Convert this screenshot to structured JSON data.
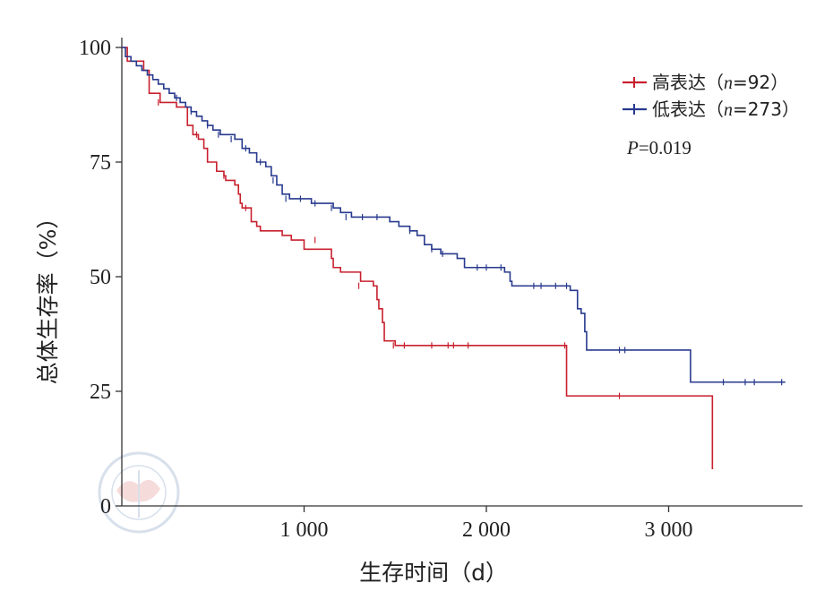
{
  "chart_data": {
    "type": "line",
    "step": true,
    "xlabel": "生存时间（d）",
    "ylabel": "总体生存率（%）",
    "xlim": [
      0,
      3700
    ],
    "ylim": [
      0,
      100
    ],
    "xticks": [
      1000,
      2000,
      3000
    ],
    "xtick_labels": [
      "1 000",
      "2 000",
      "3 000"
    ],
    "yticks": [
      0,
      25,
      50,
      75,
      100
    ],
    "ytick_labels": [
      "0",
      "25",
      "50",
      "75",
      "100"
    ],
    "legend_position": "top-right",
    "annotation": {
      "p_label": "P",
      "p_value": "=0.019"
    },
    "series": [
      {
        "key": "high",
        "name": "高表达（n=92）",
        "legend_main": "高表达（",
        "legend_n": "n",
        "legend_rest": "=92）",
        "color": "#c8202e",
        "steps": [
          [
            0,
            100
          ],
          [
            30,
            97
          ],
          [
            120,
            95
          ],
          [
            150,
            90
          ],
          [
            210,
            88
          ],
          [
            300,
            88
          ],
          [
            300,
            87
          ],
          [
            340,
            87
          ],
          [
            360,
            83
          ],
          [
            390,
            81
          ],
          [
            420,
            80
          ],
          [
            450,
            78
          ],
          [
            470,
            75
          ],
          [
            520,
            73
          ],
          [
            560,
            72
          ],
          [
            570,
            71
          ],
          [
            600,
            71
          ],
          [
            620,
            70
          ],
          [
            640,
            68
          ],
          [
            650,
            66
          ],
          [
            660,
            65
          ],
          [
            710,
            62
          ],
          [
            740,
            61
          ],
          [
            760,
            60
          ],
          [
            880,
            59
          ],
          [
            930,
            58
          ],
          [
            1000,
            58
          ],
          [
            1000,
            56
          ],
          [
            1120,
            56
          ],
          [
            1150,
            54
          ],
          [
            1160,
            52
          ],
          [
            1200,
            51
          ],
          [
            1280,
            51
          ],
          [
            1310,
            49
          ],
          [
            1380,
            48
          ],
          [
            1400,
            45
          ],
          [
            1410,
            43
          ],
          [
            1430,
            40
          ],
          [
            1440,
            36
          ],
          [
            1500,
            35
          ],
          [
            2440,
            35
          ],
          [
            2440,
            24
          ],
          [
            3240,
            24
          ],
          [
            3240,
            8
          ]
        ],
        "censored": [
          [
            200,
            88
          ],
          [
            410,
            81
          ],
          [
            560,
            72
          ],
          [
            680,
            65
          ],
          [
            1060,
            58
          ],
          [
            1300,
            48
          ],
          [
            1490,
            35
          ],
          [
            1550,
            35
          ],
          [
            1700,
            35
          ],
          [
            1790,
            35
          ],
          [
            1820,
            35
          ],
          [
            1900,
            35
          ],
          [
            2430,
            35
          ],
          [
            2730,
            24
          ]
        ]
      },
      {
        "key": "low",
        "name": "低表达（n=273）",
        "legend_main": "低表达（",
        "legend_n": "n",
        "legend_rest": "=273）",
        "color": "#283a8e",
        "steps": [
          [
            0,
            100
          ],
          [
            20,
            98
          ],
          [
            50,
            97
          ],
          [
            80,
            96
          ],
          [
            110,
            95
          ],
          [
            140,
            94
          ],
          [
            170,
            93
          ],
          [
            200,
            92
          ],
          [
            230,
            91
          ],
          [
            260,
            90
          ],
          [
            290,
            89
          ],
          [
            320,
            88
          ],
          [
            350,
            87
          ],
          [
            380,
            86
          ],
          [
            410,
            85
          ],
          [
            440,
            84
          ],
          [
            470,
            83
          ],
          [
            500,
            82
          ],
          [
            540,
            81
          ],
          [
            580,
            81
          ],
          [
            620,
            80
          ],
          [
            660,
            78
          ],
          [
            700,
            77
          ],
          [
            740,
            75
          ],
          [
            790,
            74
          ],
          [
            820,
            72
          ],
          [
            850,
            70
          ],
          [
            880,
            68
          ],
          [
            920,
            67
          ],
          [
            1000,
            67
          ],
          [
            1040,
            66
          ],
          [
            1120,
            66
          ],
          [
            1160,
            65
          ],
          [
            1200,
            64
          ],
          [
            1260,
            63
          ],
          [
            1440,
            63
          ],
          [
            1470,
            62
          ],
          [
            1520,
            61
          ],
          [
            1580,
            60
          ],
          [
            1620,
            59
          ],
          [
            1660,
            57
          ],
          [
            1700,
            56
          ],
          [
            1750,
            55
          ],
          [
            1840,
            54
          ],
          [
            1880,
            52
          ],
          [
            2100,
            52
          ],
          [
            2100,
            51
          ],
          [
            2130,
            49
          ],
          [
            2140,
            48
          ],
          [
            2450,
            48
          ],
          [
            2460,
            47
          ],
          [
            2500,
            43
          ],
          [
            2520,
            42
          ],
          [
            2540,
            38
          ],
          [
            2550,
            34
          ],
          [
            3120,
            34
          ],
          [
            3120,
            27
          ],
          [
            3640,
            27
          ]
        ],
        "censored": [
          [
            300,
            89
          ],
          [
            380,
            86
          ],
          [
            470,
            83
          ],
          [
            530,
            81
          ],
          [
            600,
            80
          ],
          [
            680,
            78
          ],
          [
            760,
            75
          ],
          [
            830,
            71
          ],
          [
            900,
            67
          ],
          [
            980,
            67
          ],
          [
            1060,
            66
          ],
          [
            1150,
            65
          ],
          [
            1230,
            63
          ],
          [
            1320,
            63
          ],
          [
            1400,
            63
          ],
          [
            1580,
            60
          ],
          [
            1700,
            56
          ],
          [
            1760,
            55
          ],
          [
            1950,
            52
          ],
          [
            2000,
            52
          ],
          [
            2080,
            52
          ],
          [
            2260,
            48
          ],
          [
            2300,
            48
          ],
          [
            2380,
            48
          ],
          [
            2440,
            48
          ],
          [
            2730,
            34
          ],
          [
            2760,
            34
          ],
          [
            3300,
            27
          ],
          [
            3420,
            27
          ],
          [
            3470,
            27
          ],
          [
            3620,
            27
          ]
        ]
      }
    ]
  }
}
